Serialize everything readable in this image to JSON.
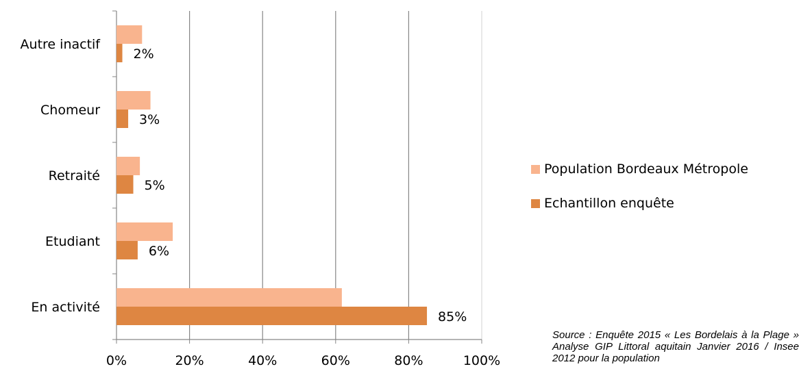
{
  "chart_data": {
    "type": "bar",
    "orientation": "horizontal",
    "categories": [
      "Autre inactif",
      "Chomeur",
      "Retraité",
      "Etudiant",
      "En activité"
    ],
    "series": [
      {
        "name": "Population Bordeaux Métropole",
        "color": "#F9B48E",
        "values": [
          7,
          9.3,
          6.4,
          15.4,
          61.7
        ]
      },
      {
        "name": "Echantillon enquête",
        "color": "#DE8642",
        "values": [
          1.6,
          3.2,
          4.6,
          5.8,
          85
        ]
      }
    ],
    "data_labels": [
      "2%",
      "3%",
      "5%",
      "6%",
      "85%"
    ],
    "x_ticks": [
      "0%",
      "20%",
      "40%",
      "60%",
      "80%",
      "100%"
    ],
    "xlim": [
      0,
      100
    ],
    "grid": "vertical",
    "legend_position": "right"
  },
  "source_text": "Source : Enquête 2015 « Les Bordelais à la Plage » Analyse GIP Littoral aquitain Janvier 2016 / Insee 2012 pour la population"
}
